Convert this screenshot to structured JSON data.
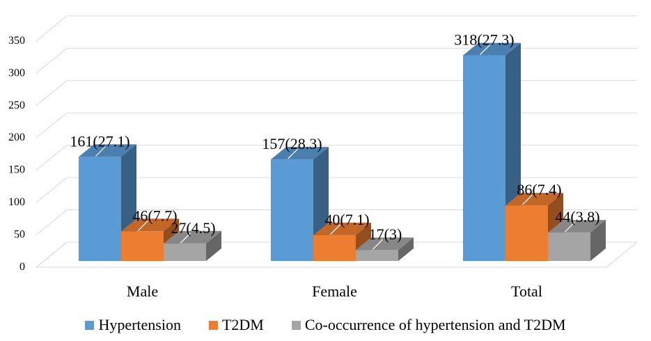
{
  "chart_data": {
    "type": "bar",
    "style": "3d-clustered-column",
    "title": "",
    "xlabel": "",
    "ylabel": "",
    "ylim": [
      0,
      350
    ],
    "yticks": [
      0,
      50,
      100,
      150,
      200,
      250,
      300,
      350
    ],
    "ytick_labels": [
      "0",
      "50",
      "100",
      "150",
      "200",
      "250",
      "300",
      "350"
    ],
    "categories": [
      "Male",
      "Female",
      "Total"
    ],
    "series": [
      {
        "name": "Hypertension",
        "color": "#5B9BD5",
        "values": [
          161,
          157,
          318
        ],
        "labels": [
          "161(27.1)",
          "157(28.3)",
          "318(27.3)"
        ]
      },
      {
        "name": "T2DM",
        "color": "#ED7D31",
        "values": [
          46,
          40,
          86
        ],
        "labels": [
          "46(7.7)",
          "40(7.1)",
          "86(7.4)"
        ]
      },
      {
        "name": "Co-occurrence of hypertension and T2DM",
        "color": "#A5A5A5",
        "values": [
          27,
          17,
          44
        ],
        "labels": [
          "27(4.5)",
          "17(3)",
          "44(3.8)"
        ]
      }
    ],
    "grid": true,
    "legend_position": "bottom"
  }
}
